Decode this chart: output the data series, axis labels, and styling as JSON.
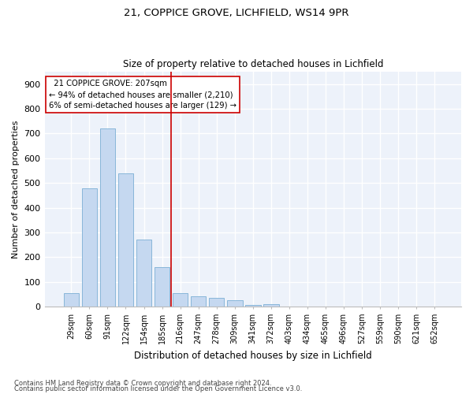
{
  "title1": "21, COPPICE GROVE, LICHFIELD, WS14 9PR",
  "title2": "Size of property relative to detached houses in Lichfield",
  "xlabel": "Distribution of detached houses by size in Lichfield",
  "ylabel": "Number of detached properties",
  "categories": [
    "29sqm",
    "60sqm",
    "91sqm",
    "122sqm",
    "154sqm",
    "185sqm",
    "216sqm",
    "247sqm",
    "278sqm",
    "309sqm",
    "341sqm",
    "372sqm",
    "403sqm",
    "434sqm",
    "465sqm",
    "496sqm",
    "527sqm",
    "559sqm",
    "590sqm",
    "621sqm",
    "652sqm"
  ],
  "values": [
    55,
    478,
    720,
    540,
    270,
    160,
    55,
    43,
    35,
    27,
    8,
    10,
    0,
    0,
    0,
    0,
    0,
    0,
    0,
    0,
    0
  ],
  "bar_color": "#c5d8f0",
  "bar_edge_color": "#7bafd4",
  "vline_color": "#cc0000",
  "box_edge_color": "#cc0000",
  "annotation_line1": "  21 COPPICE GROVE: 207sqm",
  "annotation_line2": "← 94% of detached houses are smaller (2,210)",
  "annotation_line3": "6% of semi-detached houses are larger (129) →",
  "footnote1": "Contains HM Land Registry data © Crown copyright and database right 2024.",
  "footnote2": "Contains public sector information licensed under the Open Government Licence v3.0.",
  "ylim": [
    0,
    950
  ],
  "yticks": [
    0,
    100,
    200,
    300,
    400,
    500,
    600,
    700,
    800,
    900
  ],
  "background_color": "#edf2fa",
  "grid_color": "#ffffff",
  "vline_pos": 5.5
}
